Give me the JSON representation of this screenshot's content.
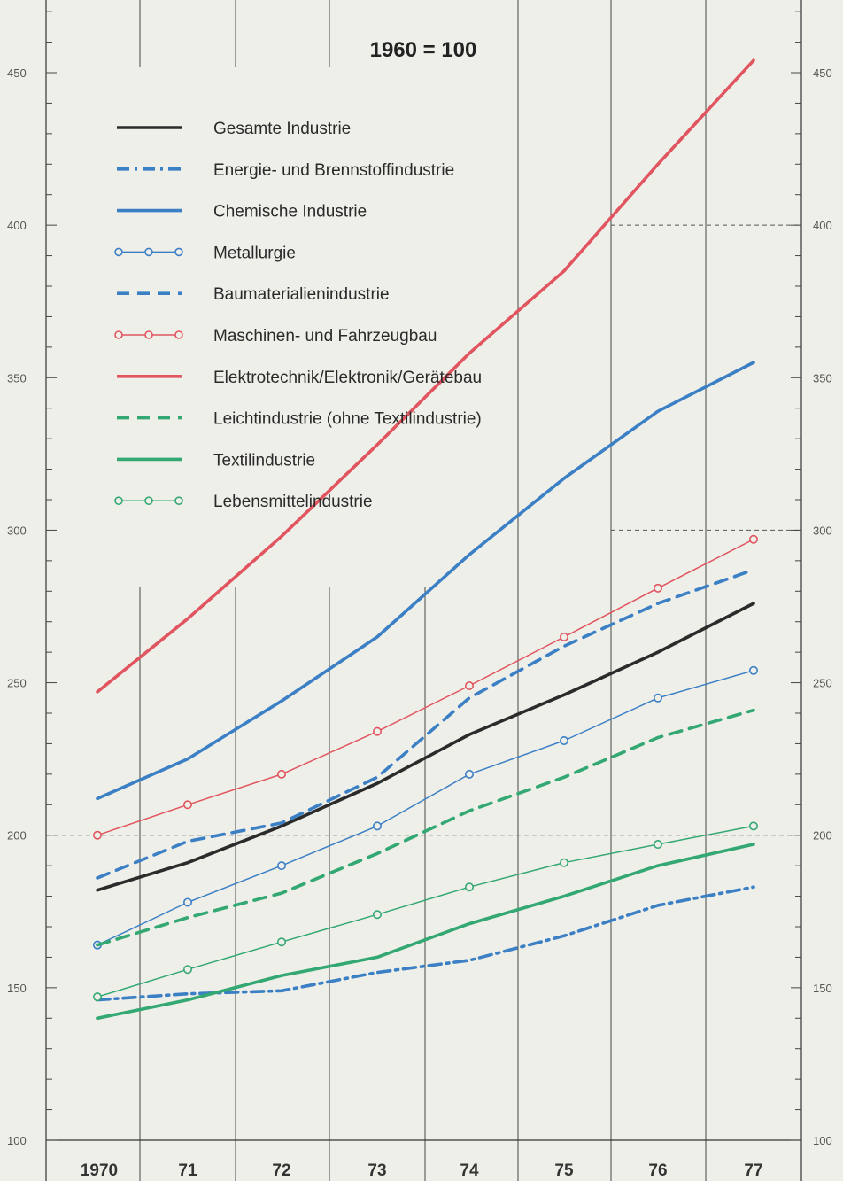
{
  "chart_data": {
    "type": "line",
    "title": "1960 = 100",
    "xlabel": "",
    "ylabel": "",
    "x": [
      "1970",
      "71",
      "72",
      "73",
      "74",
      "75",
      "76",
      "77"
    ],
    "ylim": [
      100,
      470
    ],
    "yticks": [
      100,
      150,
      200,
      250,
      300,
      350,
      400,
      450
    ],
    "reference_lines": [
      200,
      300,
      400
    ],
    "grid": "vertical",
    "legend_position": "top-left",
    "series": [
      {
        "name": "Gesamte Industrie",
        "color": "#2b2b2b",
        "style": "solid",
        "marker": "none",
        "width": "thick",
        "values": [
          182,
          191,
          203,
          217,
          233,
          246,
          260,
          276
        ]
      },
      {
        "name": "Energie- und Brennstoffindustrie",
        "color": "#3b7fc4",
        "style": "dashdot",
        "marker": "none",
        "width": "thick",
        "values": [
          146,
          148,
          149,
          155,
          159,
          167,
          177,
          183
        ]
      },
      {
        "name": "Chemische Industrie",
        "color": "#3b7fc4",
        "style": "solid",
        "marker": "none",
        "width": "thick",
        "values": [
          212,
          225,
          244,
          265,
          292,
          317,
          339,
          355
        ]
      },
      {
        "name": "Metallurgie",
        "color": "#3b7fc4",
        "style": "solid",
        "marker": "circle",
        "width": "thin",
        "values": [
          164,
          178,
          190,
          203,
          220,
          231,
          245,
          254
        ]
      },
      {
        "name": "Baumaterialienindustrie",
        "color": "#3b7fc4",
        "style": "dashed",
        "marker": "none",
        "width": "thick",
        "values": [
          186,
          198,
          204,
          219,
          245,
          262,
          276,
          287
        ]
      },
      {
        "name": "Maschinen- und Fahrzeugbau",
        "color": "#e0555f",
        "style": "solid",
        "marker": "circle",
        "width": "thin",
        "values": [
          200,
          210,
          220,
          234,
          249,
          265,
          281,
          297
        ]
      },
      {
        "name": "Elektrotechnik/Elektronik/Gerätebau",
        "color": "#e0555f",
        "style": "solid",
        "marker": "none",
        "width": "thick",
        "values": [
          247,
          271,
          298,
          328,
          358,
          385,
          420,
          454
        ]
      },
      {
        "name": "Leichtindustrie (ohne Textilindustrie)",
        "color": "#33a872",
        "style": "dashed",
        "marker": "none",
        "width": "thick",
        "values": [
          164,
          173,
          181,
          194,
          208,
          219,
          232,
          241
        ]
      },
      {
        "name": "Textilindustrie",
        "color": "#33a872",
        "style": "solid",
        "marker": "none",
        "width": "thick",
        "values": [
          140,
          146,
          154,
          160,
          171,
          180,
          190,
          197
        ]
      },
      {
        "name": "Lebensmittelindustrie",
        "color": "#33a872",
        "style": "solid",
        "marker": "circle",
        "width": "thin",
        "values": [
          147,
          156,
          165,
          174,
          183,
          191,
          197,
          203
        ]
      }
    ]
  }
}
